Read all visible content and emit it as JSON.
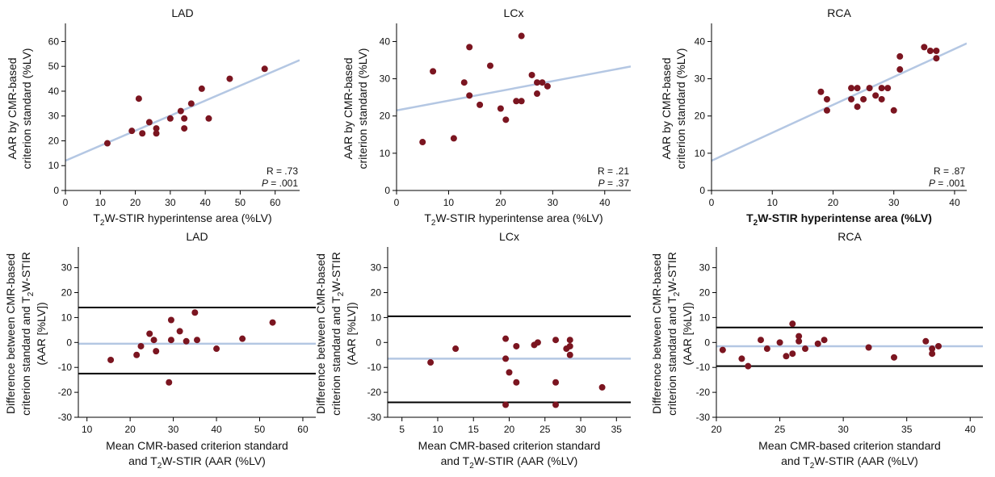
{
  "chart_data": [
    {
      "type": "scatter",
      "title": "LAD",
      "xlabel": {
        "pre": "T",
        "sub": "2",
        "post": "W-STIR hyperintense area (%LV)"
      },
      "ylabel": [
        "AAR by CMR-based",
        "criterion standard (%LV)"
      ],
      "xlim": [
        0,
        67
      ],
      "ylim": [
        0,
        66
      ],
      "xticks": [
        0,
        10,
        20,
        30,
        40,
        50,
        60
      ],
      "yticks": [
        0,
        10,
        20,
        30,
        40,
        50,
        60
      ],
      "points": [
        {
          "x": 12,
          "y": 19
        },
        {
          "x": 19,
          "y": 24
        },
        {
          "x": 21,
          "y": 37
        },
        {
          "x": 22,
          "y": 23
        },
        {
          "x": 24,
          "y": 27.5
        },
        {
          "x": 26,
          "y": 25
        },
        {
          "x": 26,
          "y": 23
        },
        {
          "x": 30,
          "y": 29
        },
        {
          "x": 33,
          "y": 32
        },
        {
          "x": 34,
          "y": 29
        },
        {
          "x": 34,
          "y": 25
        },
        {
          "x": 36,
          "y": 35
        },
        {
          "x": 39,
          "y": 41
        },
        {
          "x": 41,
          "y": 29
        },
        {
          "x": 47,
          "y": 45
        },
        {
          "x": 57,
          "y": 49
        }
      ],
      "regression": {
        "x": [
          0,
          67
        ],
        "y": [
          12,
          52.5
        ]
      },
      "stats": {
        "r_label": "R = .73",
        "p_label": "P",
        "p_value": " = .001"
      }
    },
    {
      "type": "scatter",
      "title": "LCx",
      "xlabel": {
        "pre": "T",
        "sub": "2",
        "post": "W-STIR hyperintense area (%LV)"
      },
      "ylabel": [
        "AAR by CMR-based",
        "criterion standard (%LV)"
      ],
      "xlim": [
        0,
        45
      ],
      "ylim": [
        0,
        44
      ],
      "xticks": [
        0,
        10,
        20,
        30,
        40
      ],
      "yticks": [
        0,
        10,
        20,
        30,
        40
      ],
      "points": [
        {
          "x": 5,
          "y": 13
        },
        {
          "x": 7,
          "y": 32
        },
        {
          "x": 11,
          "y": 14
        },
        {
          "x": 13,
          "y": 29
        },
        {
          "x": 14,
          "y": 38.5
        },
        {
          "x": 14,
          "y": 25.5
        },
        {
          "x": 16,
          "y": 23
        },
        {
          "x": 18,
          "y": 33.5
        },
        {
          "x": 20,
          "y": 22
        },
        {
          "x": 21,
          "y": 19
        },
        {
          "x": 23,
          "y": 24
        },
        {
          "x": 24,
          "y": 24
        },
        {
          "x": 24,
          "y": 41.5
        },
        {
          "x": 26,
          "y": 31
        },
        {
          "x": 27,
          "y": 29
        },
        {
          "x": 27,
          "y": 26
        },
        {
          "x": 28,
          "y": 29
        },
        {
          "x": 29,
          "y": 28
        }
      ],
      "regression": {
        "x": [
          0,
          45
        ],
        "y": [
          21.5,
          33.3
        ]
      },
      "stats": {
        "r_label": "R = .21",
        "p_label": "P",
        "p_value": " = .37"
      }
    },
    {
      "type": "scatter",
      "title": "RCA",
      "xlabel": {
        "pre": "T",
        "sub": "2",
        "post": "W-STIR hyperintense area (%LV)"
      },
      "ylabel": [
        "AAR by CMR-based",
        "criterion standard (%LV)"
      ],
      "xlim": [
        0,
        42
      ],
      "ylim": [
        0,
        44
      ],
      "xticks": [
        0,
        10,
        20,
        30,
        40
      ],
      "yticks": [
        0,
        10,
        20,
        30,
        40
      ],
      "points": [
        {
          "x": 18,
          "y": 26.5
        },
        {
          "x": 19,
          "y": 24.5
        },
        {
          "x": 19,
          "y": 21.5
        },
        {
          "x": 23,
          "y": 27.5
        },
        {
          "x": 23,
          "y": 24.5
        },
        {
          "x": 24,
          "y": 27.5
        },
        {
          "x": 24,
          "y": 22.5
        },
        {
          "x": 25,
          "y": 24.5
        },
        {
          "x": 26,
          "y": 27.5
        },
        {
          "x": 27,
          "y": 25.5
        },
        {
          "x": 28,
          "y": 27.5
        },
        {
          "x": 28,
          "y": 24.5
        },
        {
          "x": 29,
          "y": 27.5
        },
        {
          "x": 30,
          "y": 21.5
        },
        {
          "x": 31,
          "y": 32.5
        },
        {
          "x": 31,
          "y": 36
        },
        {
          "x": 35,
          "y": 38.5
        },
        {
          "x": 36,
          "y": 37.5
        },
        {
          "x": 37,
          "y": 37.5
        },
        {
          "x": 37,
          "y": 35.5
        }
      ],
      "regression": {
        "x": [
          0,
          42
        ],
        "y": [
          8,
          39.5
        ]
      },
      "stats": {
        "r_label": "R = .87",
        "p_label": "P",
        "p_value": " = .001"
      }
    },
    {
      "type": "scatter",
      "title": "LAD",
      "xlabel": [
        "Mean CMR-based criterion standard",
        {
          "pre": "and T",
          "sub": "2",
          "post": "W-STIR (AAR (%LV)"
        }
      ],
      "ylabel": [
        "Difference between CMR-based",
        {
          "pre": "criterion standard and T",
          "sub": "2",
          "post": "W-STIR"
        },
        "(AAR [%LV])"
      ],
      "xlim": [
        8,
        63
      ],
      "ylim": [
        -30,
        37
      ],
      "xticks": [
        10,
        20,
        30,
        40,
        50,
        60
      ],
      "yticks": [
        -30,
        -20,
        -10,
        0,
        10,
        20,
        30
      ],
      "points": [
        {
          "x": 15.5,
          "y": -7
        },
        {
          "x": 21.5,
          "y": -5
        },
        {
          "x": 22.5,
          "y": -1.5
        },
        {
          "x": 24.5,
          "y": 3.5
        },
        {
          "x": 25.5,
          "y": 1
        },
        {
          "x": 26,
          "y": -3.5
        },
        {
          "x": 29,
          "y": -16
        },
        {
          "x": 29.5,
          "y": 9
        },
        {
          "x": 29.5,
          "y": 1
        },
        {
          "x": 31.5,
          "y": 4.5
        },
        {
          "x": 33,
          "y": 0.5
        },
        {
          "x": 35,
          "y": 12
        },
        {
          "x": 35.5,
          "y": 1
        },
        {
          "x": 40,
          "y": -2.5
        },
        {
          "x": 46,
          "y": 1.5
        },
        {
          "x": 53,
          "y": 8
        }
      ],
      "mean_line": -0.5,
      "limits": [
        14,
        -12.5
      ]
    },
    {
      "type": "scatter",
      "title": "LCx",
      "xlabel": [
        "Mean CMR-based criterion standard",
        {
          "pre": "and T",
          "sub": "2",
          "post": "W-STIR (AAR (%LV)"
        }
      ],
      "ylabel": [
        "Difference between CMR-based",
        {
          "pre": "criterion standard and T",
          "sub": "2",
          "post": "W-STIR"
        },
        "(AAR [%LV])"
      ],
      "xlim": [
        3,
        37
      ],
      "ylim": [
        -30,
        37
      ],
      "xticks": [
        5,
        10,
        15,
        20,
        25,
        30,
        35
      ],
      "yticks": [
        -30,
        -20,
        -10,
        0,
        10,
        20,
        30
      ],
      "points": [
        {
          "x": 9,
          "y": -8
        },
        {
          "x": 12.5,
          "y": -2.5
        },
        {
          "x": 19.5,
          "y": 1.5
        },
        {
          "x": 19.5,
          "y": -6.5
        },
        {
          "x": 19.5,
          "y": -25
        },
        {
          "x": 20,
          "y": -12
        },
        {
          "x": 21,
          "y": -1.5
        },
        {
          "x": 21,
          "y": -16
        },
        {
          "x": 23.5,
          "y": -1
        },
        {
          "x": 24,
          "y": 0
        },
        {
          "x": 26.5,
          "y": 1
        },
        {
          "x": 26.5,
          "y": -16
        },
        {
          "x": 26.5,
          "y": -25
        },
        {
          "x": 28.5,
          "y": 1
        },
        {
          "x": 28.5,
          "y": -1.5
        },
        {
          "x": 28.5,
          "y": -5
        },
        {
          "x": 28,
          "y": -2.5
        },
        {
          "x": 33,
          "y": -18
        }
      ],
      "mean_line": -6.5,
      "limits": [
        10.5,
        -24
      ]
    },
    {
      "type": "scatter",
      "title": "RCA",
      "xlabel": [
        "Mean CMR-based criterion standard",
        {
          "pre": "and T",
          "sub": "2",
          "post": "W-STIR (AAR (%LV)"
        }
      ],
      "ylabel": [
        "Difference between CMR-based",
        {
          "pre": "criterion standard and T",
          "sub": "2",
          "post": "W-STIR"
        },
        "(AAR [%LV])"
      ],
      "xlim": [
        20,
        41
      ],
      "ylim": [
        -30,
        37
      ],
      "xticks": [
        20,
        25,
        30,
        35,
        40
      ],
      "yticks": [
        -30,
        -20,
        -10,
        0,
        10,
        20,
        30
      ],
      "points": [
        {
          "x": 20.5,
          "y": -3
        },
        {
          "x": 22,
          "y": -6.5
        },
        {
          "x": 22.5,
          "y": -9.5
        },
        {
          "x": 23.5,
          "y": 1
        },
        {
          "x": 24,
          "y": -2.5
        },
        {
          "x": 25,
          "y": 0
        },
        {
          "x": 25.5,
          "y": -5.5
        },
        {
          "x": 26,
          "y": 7.5
        },
        {
          "x": 26,
          "y": -4.5
        },
        {
          "x": 26.5,
          "y": 2.5
        },
        {
          "x": 26.5,
          "y": 0.5
        },
        {
          "x": 27,
          "y": -2.5
        },
        {
          "x": 28,
          "y": -0.5
        },
        {
          "x": 28.5,
          "y": 1
        },
        {
          "x": 32,
          "y": -2
        },
        {
          "x": 34,
          "y": -6
        },
        {
          "x": 36.5,
          "y": 0.5
        },
        {
          "x": 37,
          "y": -2.5
        },
        {
          "x": 37,
          "y": -4.5
        },
        {
          "x": 37.5,
          "y": -1.5
        }
      ],
      "mean_line": -1.5,
      "limits": [
        6,
        -9.5
      ]
    }
  ],
  "colors": {
    "point": "#7b1520",
    "regression": "#b4c7e3",
    "mean_line": "#b4c7e3",
    "limits": "#000000",
    "axis": "#000000"
  }
}
